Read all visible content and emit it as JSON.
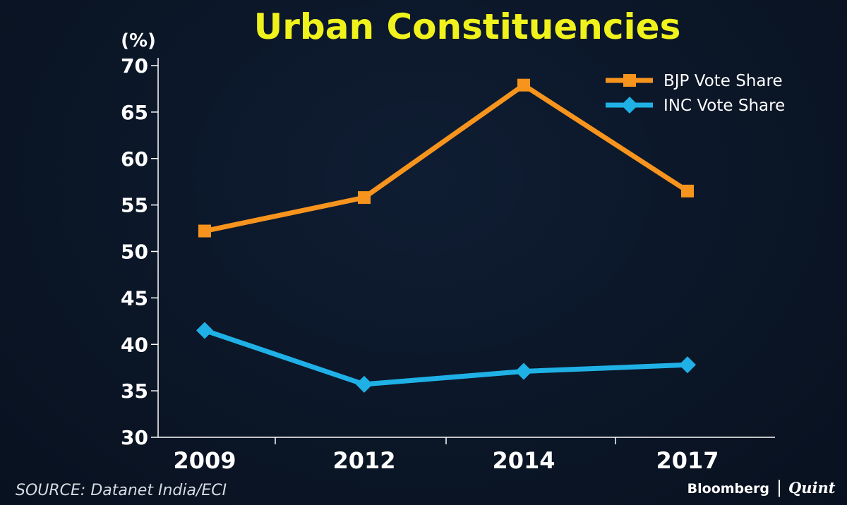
{
  "chart_data": {
    "type": "line",
    "title": "Urban Constituencies",
    "ylabel": "(%)",
    "xlabel": "",
    "categories": [
      "2009",
      "2012",
      "2014",
      "2017"
    ],
    "ylim": [
      30,
      70
    ],
    "yticks": [
      "30",
      "35",
      "40",
      "45",
      "50",
      "55",
      "60",
      "65",
      "70"
    ],
    "grid": false,
    "legend_position": "top-right",
    "series": [
      {
        "name": "BJP Vote Share",
        "values": [
          52.2,
          55.8,
          67.9,
          56.5
        ],
        "color": "#f7941d",
        "marker": "square"
      },
      {
        "name": "INC Vote Share",
        "values": [
          41.5,
          35.7,
          37.1,
          37.8
        ],
        "color": "#1fb1e6",
        "marker": "diamond"
      }
    ],
    "title_color": "#f0f21c"
  },
  "footer": {
    "source": "SOURCE: Datanet India/ECI",
    "brand_primary": "Bloomberg",
    "brand_separator": "|",
    "brand_secondary": "Quint"
  }
}
